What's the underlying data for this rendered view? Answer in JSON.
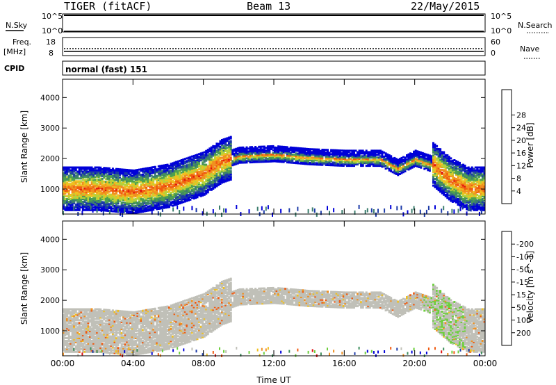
{
  "header": {
    "radar": "TIGER (fitACF)",
    "beam": "Beam 13",
    "date": "22/May/2015"
  },
  "nsky_panel": {
    "left_label": "N.Sky",
    "right_label": "N.Search",
    "left_ticks": [
      "10^5",
      "10^0"
    ],
    "right_ticks": [
      "10^5",
      "10^0"
    ]
  },
  "freq_panel": {
    "left_label_line1": "Freq.",
    "left_label_line2": "[MHz]",
    "right_label": "Nave",
    "left_ticks": [
      "18",
      "8"
    ],
    "right_ticks": [
      "60",
      "0"
    ]
  },
  "cpid": {
    "label": "CPID",
    "value": "normal (fast) 151"
  },
  "colors": {
    "power_scale": [
      "#0000d8",
      "#1c3aa8",
      "#3c7e6e",
      "#4ea04e",
      "#b6d23a",
      "#f0c020",
      "#f09020",
      "#f05a10",
      "#e01010"
    ],
    "velocity_scale": [
      "#e01010",
      "#f05a10",
      "#f09020",
      "#f0c020",
      "#c0c0b8",
      "#6ccf3c",
      "#3c8e5c",
      "#1c3aa8",
      "#0000d8"
    ],
    "ground_scatter": "#c0c0b8"
  },
  "chart_data": [
    {
      "type": "heatmap",
      "panel": "power",
      "ylabel": "Slant Range [km]",
      "ylim": [
        180,
        4600
      ],
      "xlim": [
        "00:00",
        "24:00"
      ],
      "yticks": [
        "1000",
        "2000",
        "3000",
        "4000"
      ],
      "colorbar_label": "Power [dB]",
      "colorbar_ticks": [
        "4",
        "8",
        "12",
        "16",
        "20",
        "24",
        "28"
      ],
      "colorbar_range": [
        0,
        32
      ],
      "echo_band_center_km": {
        "x": [
          "00:00",
          "02:00",
          "04:00",
          "06:00",
          "08:00",
          "09:00",
          "10:00",
          "12:00",
          "14:00",
          "16:00",
          "18:00",
          "19:00",
          "20:00",
          "21:00",
          "22:00",
          "23:00",
          "24:00"
        ],
        "y": [
          1000,
          1000,
          900,
          1100,
          1500,
          1900,
          2100,
          2150,
          2050,
          2000,
          2000,
          1700,
          2000,
          1800,
          1300,
          1000,
          1000
        ]
      },
      "peak_power_db": 30
    },
    {
      "type": "heatmap",
      "panel": "velocity",
      "ylabel": "Slant Range [km]",
      "xlabel": "Time UT",
      "ylim": [
        180,
        4600
      ],
      "xticks": [
        "00:00",
        "04:00",
        "08:00",
        "12:00",
        "16:00",
        "20:00",
        "00:00"
      ],
      "yticks": [
        "1000",
        "2000",
        "3000",
        "4000"
      ],
      "colorbar_label": "Velocity [m s^-1]",
      "colorbar_ticks": [
        "200",
        "100",
        "50",
        "15",
        "-15",
        "-50",
        "-100",
        "-200"
      ],
      "dominant_class": "ground scatter"
    }
  ]
}
